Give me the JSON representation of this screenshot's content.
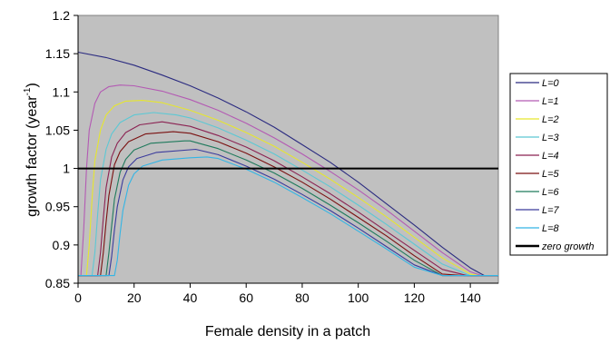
{
  "chart_data": {
    "type": "line",
    "xlabel": "Female density in a patch",
    "ylabel": "growth factor (year",
    "ylabel_sup": "-1",
    "ylabel_close": ")",
    "xlim": [
      0,
      150
    ],
    "ylim": [
      0.85,
      1.2
    ],
    "xticks": [
      "0",
      "20",
      "40",
      "60",
      "80",
      "100",
      "120",
      "140"
    ],
    "yticks": [
      "0.85",
      "0.9",
      "0.95",
      "1",
      "1.05",
      "1.1",
      "1.15",
      "1.2"
    ],
    "grid": false,
    "legend_position": "right",
    "series": [
      {
        "name": "L=0",
        "color": "#2b2b80",
        "x": [
          0,
          10,
          20,
          30,
          40,
          50,
          60,
          70,
          80,
          90,
          100,
          110,
          120,
          130,
          140,
          145,
          150
        ],
        "y": [
          1.152,
          1.145,
          1.135,
          1.122,
          1.108,
          1.092,
          1.074,
          1.054,
          1.031,
          1.008,
          0.982,
          0.954,
          0.926,
          0.897,
          0.87,
          0.86,
          0.86
        ]
      },
      {
        "name": "L=1",
        "color": "#b35ab3",
        "x": [
          0,
          1,
          2,
          3,
          4,
          6,
          8,
          11,
          15,
          20,
          30,
          40,
          50,
          60,
          70,
          80,
          90,
          100,
          110,
          120,
          130,
          140,
          144,
          150
        ],
        "y": [
          0.86,
          0.86,
          0.92,
          1.0,
          1.05,
          1.085,
          1.1,
          1.107,
          1.109,
          1.108,
          1.101,
          1.09,
          1.076,
          1.059,
          1.04,
          1.019,
          0.996,
          0.972,
          0.946,
          0.918,
          0.89,
          0.865,
          0.86,
          0.86
        ]
      },
      {
        "name": "L=2",
        "color": "#e6e62e",
        "x": [
          0,
          3,
          4,
          5,
          6,
          8,
          10,
          13,
          17,
          23,
          30,
          40,
          50,
          60,
          70,
          80,
          90,
          100,
          110,
          120,
          130,
          140,
          143,
          150
        ],
        "y": [
          0.86,
          0.86,
          0.9,
          0.96,
          1.01,
          1.05,
          1.07,
          1.082,
          1.088,
          1.089,
          1.086,
          1.076,
          1.063,
          1.047,
          1.029,
          1.008,
          0.986,
          0.962,
          0.937,
          0.91,
          0.883,
          0.862,
          0.86,
          0.86
        ]
      },
      {
        "name": "L=3",
        "color": "#5cc8d4",
        "x": [
          0,
          5,
          6,
          7,
          8,
          10,
          12,
          15,
          20,
          27,
          35,
          40,
          50,
          60,
          70,
          80,
          90,
          100,
          110,
          120,
          130,
          140,
          142,
          150
        ],
        "y": [
          0.86,
          0.86,
          0.89,
          0.94,
          0.985,
          1.025,
          1.045,
          1.06,
          1.07,
          1.073,
          1.07,
          1.066,
          1.053,
          1.037,
          1.019,
          0.998,
          0.976,
          0.952,
          0.927,
          0.901,
          0.875,
          0.86,
          0.86,
          0.86
        ]
      },
      {
        "name": "L=4",
        "color": "#8b2252",
        "x": [
          0,
          7,
          8,
          9,
          10,
          12,
          14,
          17,
          22,
          30,
          40,
          50,
          60,
          70,
          80,
          90,
          100,
          110,
          120,
          130,
          139,
          141,
          150
        ],
        "y": [
          0.86,
          0.86,
          0.89,
          0.935,
          0.975,
          1.015,
          1.033,
          1.047,
          1.057,
          1.061,
          1.055,
          1.043,
          1.028,
          1.01,
          0.989,
          0.967,
          0.943,
          0.918,
          0.893,
          0.868,
          0.86,
          0.86,
          0.86
        ]
      },
      {
        "name": "L=5",
        "color": "#7a1010",
        "x": [
          0,
          8,
          9,
          10,
          11,
          13,
          15,
          18,
          24,
          34,
          40,
          50,
          60,
          70,
          80,
          90,
          100,
          110,
          120,
          130,
          138,
          150
        ],
        "y": [
          0.86,
          0.86,
          0.89,
          0.93,
          0.965,
          1.005,
          1.022,
          1.035,
          1.045,
          1.048,
          1.046,
          1.035,
          1.02,
          1.002,
          0.982,
          0.96,
          0.936,
          0.912,
          0.886,
          0.862,
          0.86,
          0.86
        ]
      },
      {
        "name": "L=6",
        "color": "#1f7a5c",
        "x": [
          0,
          10,
          11,
          12,
          13,
          15,
          17,
          20,
          26,
          38,
          40,
          50,
          60,
          70,
          80,
          90,
          100,
          110,
          120,
          130,
          137,
          150
        ],
        "y": [
          0.86,
          0.86,
          0.89,
          0.925,
          0.96,
          0.995,
          1.012,
          1.024,
          1.033,
          1.036,
          1.036,
          1.026,
          1.011,
          0.994,
          0.974,
          0.952,
          0.929,
          0.905,
          0.88,
          0.86,
          0.86,
          0.86
        ]
      },
      {
        "name": "L=7",
        "color": "#3a3a9c",
        "x": [
          0,
          11,
          12,
          13,
          14,
          16,
          18,
          21,
          28,
          42,
          50,
          60,
          70,
          80,
          90,
          100,
          110,
          120,
          130,
          136,
          150
        ],
        "y": [
          0.86,
          0.86,
          0.885,
          0.92,
          0.95,
          0.985,
          1.002,
          1.013,
          1.021,
          1.025,
          1.018,
          1.003,
          0.986,
          0.966,
          0.945,
          0.922,
          0.898,
          0.874,
          0.86,
          0.86,
          0.86
        ]
      },
      {
        "name": "L=8",
        "color": "#33b5e5",
        "x": [
          0,
          13,
          14,
          15,
          16,
          18,
          20,
          23,
          30,
          40,
          46,
          50,
          60,
          70,
          80,
          90,
          100,
          110,
          120,
          130,
          135,
          150
        ],
        "y": [
          0.86,
          0.86,
          0.88,
          0.915,
          0.945,
          0.978,
          0.993,
          1.003,
          1.011,
          1.014,
          1.015,
          1.013,
          0.999,
          0.982,
          0.962,
          0.941,
          0.918,
          0.895,
          0.871,
          0.86,
          0.86,
          0.86
        ]
      },
      {
        "name": "zero growth",
        "color": "#000000",
        "x": [
          0,
          150
        ],
        "y": [
          1,
          1
        ],
        "thick": true
      }
    ]
  }
}
